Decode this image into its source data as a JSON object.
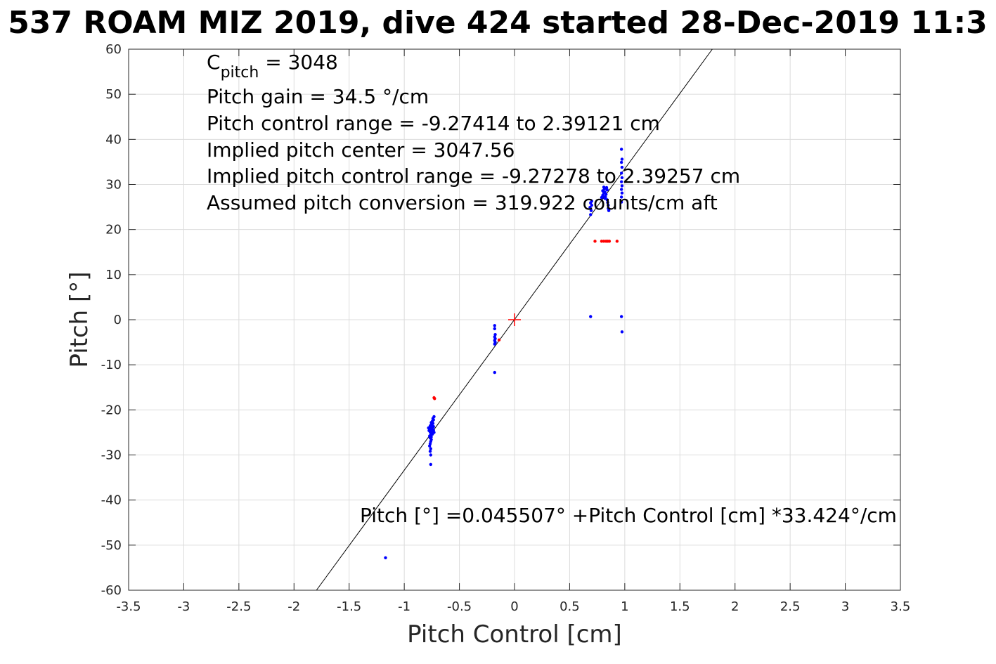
{
  "chart_data": {
    "type": "scatter",
    "title": "537 ROAM MIZ 2019, dive 424 started 28-Dec-2019 11:3",
    "xlabel": "Pitch Control [cm]",
    "ylabel": "Pitch [°]",
    "xlim": [
      -3.5,
      3.5
    ],
    "ylim": [
      -60,
      60
    ],
    "xticks": [
      "-3.5",
      "-3",
      "-2.5",
      "-2",
      "-1.5",
      "-1",
      "-0.5",
      "0",
      "0.5",
      "1",
      "1.5",
      "2",
      "2.5",
      "3",
      "3.5"
    ],
    "yticks": [
      "60",
      "50",
      "40",
      "30",
      "20",
      "10",
      "0",
      "-10",
      "-20",
      "-30",
      "-40",
      "-50",
      "-60"
    ],
    "grid": true,
    "annotations": {
      "c_pitch_symbol": "C",
      "c_pitch_subscript": "pitch",
      "c_pitch_value": " = 3048",
      "lines": [
        "Pitch gain = 34.5 °/cm",
        "Pitch control range = -9.27414 to 2.39121 cm",
        "Implied pitch center = 3047.56",
        "Implied pitch control range = -9.27278 to 2.39257 cm",
        "Assumed pitch conversion = 319.922 counts/cm aft"
      ],
      "fit_equation": "Pitch [°] =0.045507° +Pitch Control [cm] *33.424°/cm"
    },
    "fit_line": {
      "intercept": 0.045507,
      "slope": 33.424,
      "color": "#000000"
    },
    "center_marker": {
      "x": 0,
      "y": 0,
      "color": "#ff0000"
    },
    "series": [
      {
        "color": "#0000ff",
        "points": [
          [
            -1.17,
            -52.8
          ],
          [
            -0.76,
            -32.1
          ],
          [
            -0.76,
            -30.0
          ],
          [
            -0.765,
            -29.2
          ],
          [
            -0.76,
            -28.6
          ],
          [
            -0.77,
            -28.0
          ],
          [
            -0.765,
            -27.5
          ],
          [
            -0.76,
            -27.0
          ],
          [
            -0.755,
            -26.6
          ],
          [
            -0.765,
            -26.2
          ],
          [
            -0.77,
            -25.8
          ],
          [
            -0.76,
            -25.5
          ],
          [
            -0.75,
            -25.2
          ],
          [
            -0.765,
            -24.9
          ],
          [
            -0.775,
            -24.6
          ],
          [
            -0.76,
            -24.3
          ],
          [
            -0.745,
            -24.1
          ],
          [
            -0.755,
            -23.8
          ],
          [
            -0.765,
            -23.6
          ],
          [
            -0.75,
            -23.3
          ],
          [
            -0.74,
            -23.0
          ],
          [
            -0.755,
            -22.8
          ],
          [
            -0.745,
            -22.5
          ],
          [
            -0.735,
            -22.2
          ],
          [
            -0.74,
            -21.9
          ],
          [
            -0.73,
            -21.5
          ],
          [
            -0.745,
            -24.8
          ],
          [
            -0.735,
            -24.5
          ],
          [
            -0.77,
            -24.2
          ],
          [
            -0.78,
            -24.0
          ],
          [
            -0.73,
            -25.0
          ],
          [
            -0.755,
            -26.0
          ],
          [
            -0.745,
            -25.4
          ],
          [
            -0.76,
            -23.4
          ],
          [
            -0.735,
            -23.7
          ],
          [
            -0.18,
            -11.7
          ],
          [
            -0.18,
            -5.4
          ],
          [
            -0.175,
            -5.0
          ],
          [
            -0.18,
            -4.6
          ],
          [
            -0.175,
            -4.2
          ],
          [
            -0.18,
            -3.8
          ],
          [
            -0.175,
            -3.3
          ],
          [
            -0.18,
            -2.0
          ],
          [
            -0.18,
            -1.3
          ],
          [
            0.69,
            0.7
          ],
          [
            0.97,
            0.7
          ],
          [
            0.975,
            -2.7
          ],
          [
            0.69,
            23.3
          ],
          [
            0.695,
            24.2
          ],
          [
            0.685,
            24.9
          ],
          [
            0.7,
            25.4
          ],
          [
            0.69,
            25.9
          ],
          [
            0.7,
            26.3
          ],
          [
            0.79,
            27.1
          ],
          [
            0.8,
            27.6
          ],
          [
            0.81,
            28.1
          ],
          [
            0.8,
            28.6
          ],
          [
            0.815,
            29.0
          ],
          [
            0.81,
            29.4
          ],
          [
            0.82,
            28.3
          ],
          [
            0.83,
            27.8
          ],
          [
            0.825,
            27.2
          ],
          [
            0.84,
            26.6
          ],
          [
            0.845,
            26.0
          ],
          [
            0.85,
            25.4
          ],
          [
            0.85,
            24.7
          ],
          [
            0.855,
            24.2
          ],
          [
            0.84,
            28.8
          ],
          [
            0.835,
            29.3
          ],
          [
            0.805,
            27.4
          ],
          [
            0.82,
            26.9
          ],
          [
            0.97,
            26.1
          ],
          [
            0.97,
            27.2
          ],
          [
            0.975,
            28.1
          ],
          [
            0.97,
            28.9
          ],
          [
            0.975,
            29.7
          ],
          [
            0.97,
            30.6
          ],
          [
            0.975,
            31.5
          ],
          [
            0.97,
            32.5
          ],
          [
            0.975,
            33.8
          ],
          [
            0.97,
            34.9
          ],
          [
            0.975,
            35.6
          ],
          [
            0.97,
            37.8
          ]
        ]
      },
      {
        "color": "#ff0000",
        "points": [
          [
            -0.725,
            -17.5
          ],
          [
            -0.73,
            -17.3
          ],
          [
            -0.14,
            -4.5
          ],
          [
            0.73,
            17.4
          ],
          [
            0.79,
            17.4
          ],
          [
            0.81,
            17.4
          ],
          [
            0.83,
            17.4
          ],
          [
            0.845,
            17.4
          ],
          [
            0.86,
            17.4
          ],
          [
            0.93,
            17.4
          ]
        ]
      }
    ]
  }
}
